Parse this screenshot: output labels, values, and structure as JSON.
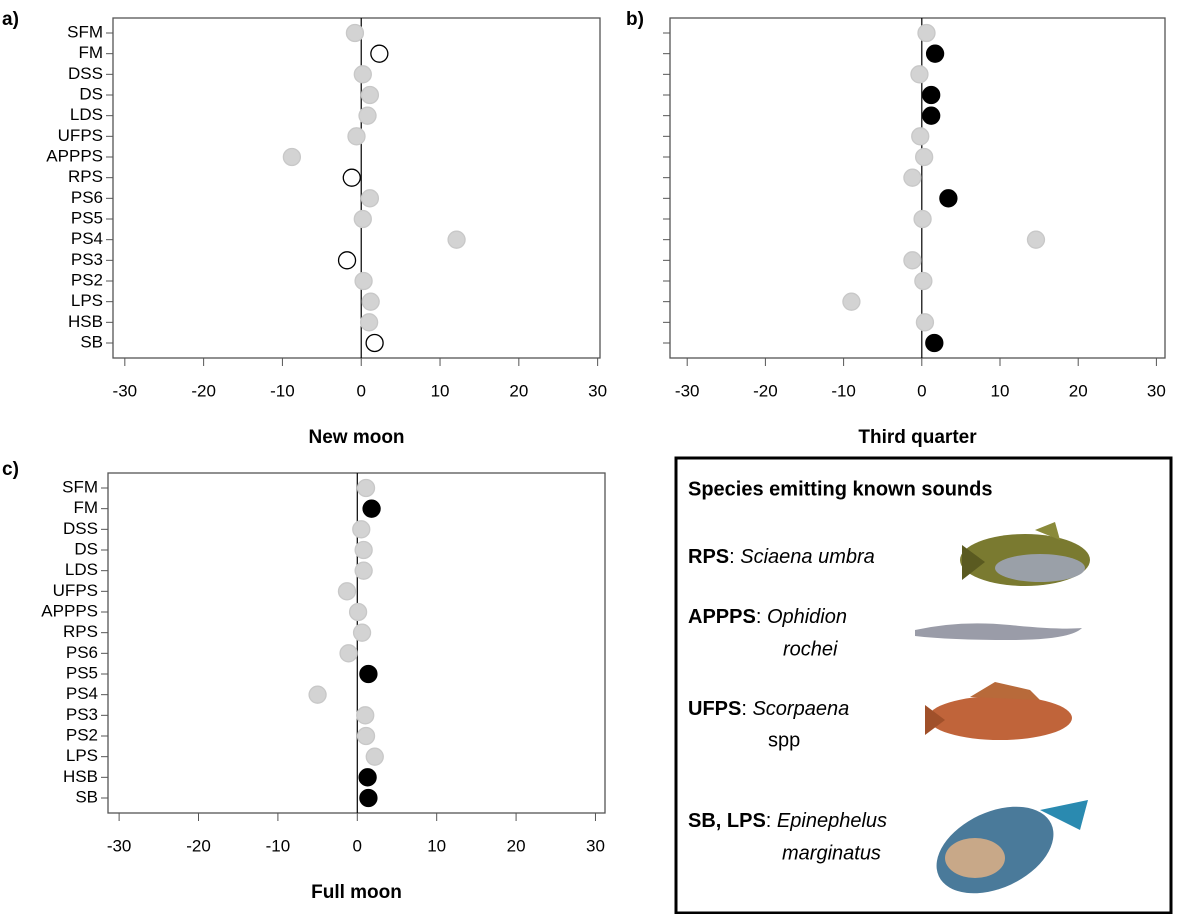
{
  "chart_data": [
    {
      "type": "dot",
      "panel_label": "a)",
      "xlabel": "New moon",
      "categories": [
        "SFM",
        "FM",
        "DSS",
        "DS",
        "LDS",
        "UFPS",
        "APPPS",
        "RPS",
        "PS6",
        "PS5",
        "PS4",
        "PS3",
        "PS2",
        "LPS",
        "HSB",
        "SB"
      ],
      "values": [
        -0.8,
        2.3,
        0.2,
        1.1,
        0.8,
        -0.6,
        -8.8,
        -1.2,
        1.1,
        0.2,
        12.1,
        -1.8,
        0.3,
        1.2,
        1.0,
        1.7
      ],
      "colors": [
        "#d3d3d3",
        "#ffffff",
        "#d3d3d3",
        "#d3d3d3",
        "#d3d3d3",
        "#d3d3d3",
        "#d3d3d3",
        "#ffffff",
        "#d3d3d3",
        "#d3d3d3",
        "#d3d3d3",
        "#ffffff",
        "#d3d3d3",
        "#d3d3d3",
        "#d3d3d3",
        "#ffffff"
      ],
      "xlim": [
        -31.5,
        30.3
      ],
      "xticks": [
        -30,
        -20,
        -10,
        0,
        10,
        20,
        30
      ]
    },
    {
      "type": "dot",
      "panel_label": "b)",
      "xlabel": "Third quarter",
      "categories": [
        "SFM",
        "FM",
        "DSS",
        "DS",
        "LDS",
        "UFPS",
        "APPPS",
        "RPS",
        "PS6",
        "PS5",
        "PS4",
        "PS3",
        "PS2",
        "LPS",
        "HSB",
        "SB"
      ],
      "values": [
        0.6,
        1.7,
        -0.3,
        1.2,
        1.2,
        -0.2,
        0.3,
        -1.2,
        3.4,
        0.1,
        14.6,
        -1.2,
        0.2,
        -9.0,
        0.4,
        1.6
      ],
      "colors": [
        "#d3d3d3",
        "#000000",
        "#d3d3d3",
        "#000000",
        "#000000",
        "#d3d3d3",
        "#d3d3d3",
        "#d3d3d3",
        "#000000",
        "#d3d3d3",
        "#d3d3d3",
        "#d3d3d3",
        "#d3d3d3",
        "#d3d3d3",
        "#d3d3d3",
        "#000000"
      ],
      "xlim": [
        -32.2,
        31.1
      ],
      "xticks": [
        -30,
        -20,
        -10,
        0,
        10,
        20,
        30
      ]
    },
    {
      "type": "dot",
      "panel_label": "c)",
      "xlabel": "Full moon",
      "categories": [
        "SFM",
        "FM",
        "DSS",
        "DS",
        "LDS",
        "UFPS",
        "APPPS",
        "RPS",
        "PS6",
        "PS5",
        "PS4",
        "PS3",
        "PS2",
        "LPS",
        "HSB",
        "SB"
      ],
      "values": [
        1.1,
        1.8,
        0.5,
        0.8,
        0.8,
        -1.3,
        0.1,
        0.6,
        -1.1,
        1.4,
        -5.0,
        1.0,
        1.1,
        2.2,
        1.3,
        1.4
      ],
      "colors": [
        "#d3d3d3",
        "#000000",
        "#d3d3d3",
        "#d3d3d3",
        "#d3d3d3",
        "#d3d3d3",
        "#d3d3d3",
        "#d3d3d3",
        "#d3d3d3",
        "#000000",
        "#d3d3d3",
        "#d3d3d3",
        "#d3d3d3",
        "#d3d3d3",
        "#000000",
        "#000000"
      ],
      "xlim": [
        -31.4,
        31.2
      ],
      "xticks": [
        -30,
        -20,
        -10,
        0,
        10,
        20,
        30
      ]
    }
  ],
  "legend_box": {
    "title": "Species emitting known sounds",
    "separator": ":",
    "entries": [
      {
        "code": "RPS",
        "species_lines": [
          "Sciaena umbra"
        ]
      },
      {
        "code": "APPPS",
        "species_lines": [
          "Ophidion",
          "rochei"
        ]
      },
      {
        "code": "UFPS",
        "species_lines": [
          "Scorpaena"
        ],
        "extra": "spp"
      },
      {
        "code": "SB, LPS",
        "species_lines": [
          "Epinephelus",
          "marginatus"
        ]
      }
    ]
  }
}
